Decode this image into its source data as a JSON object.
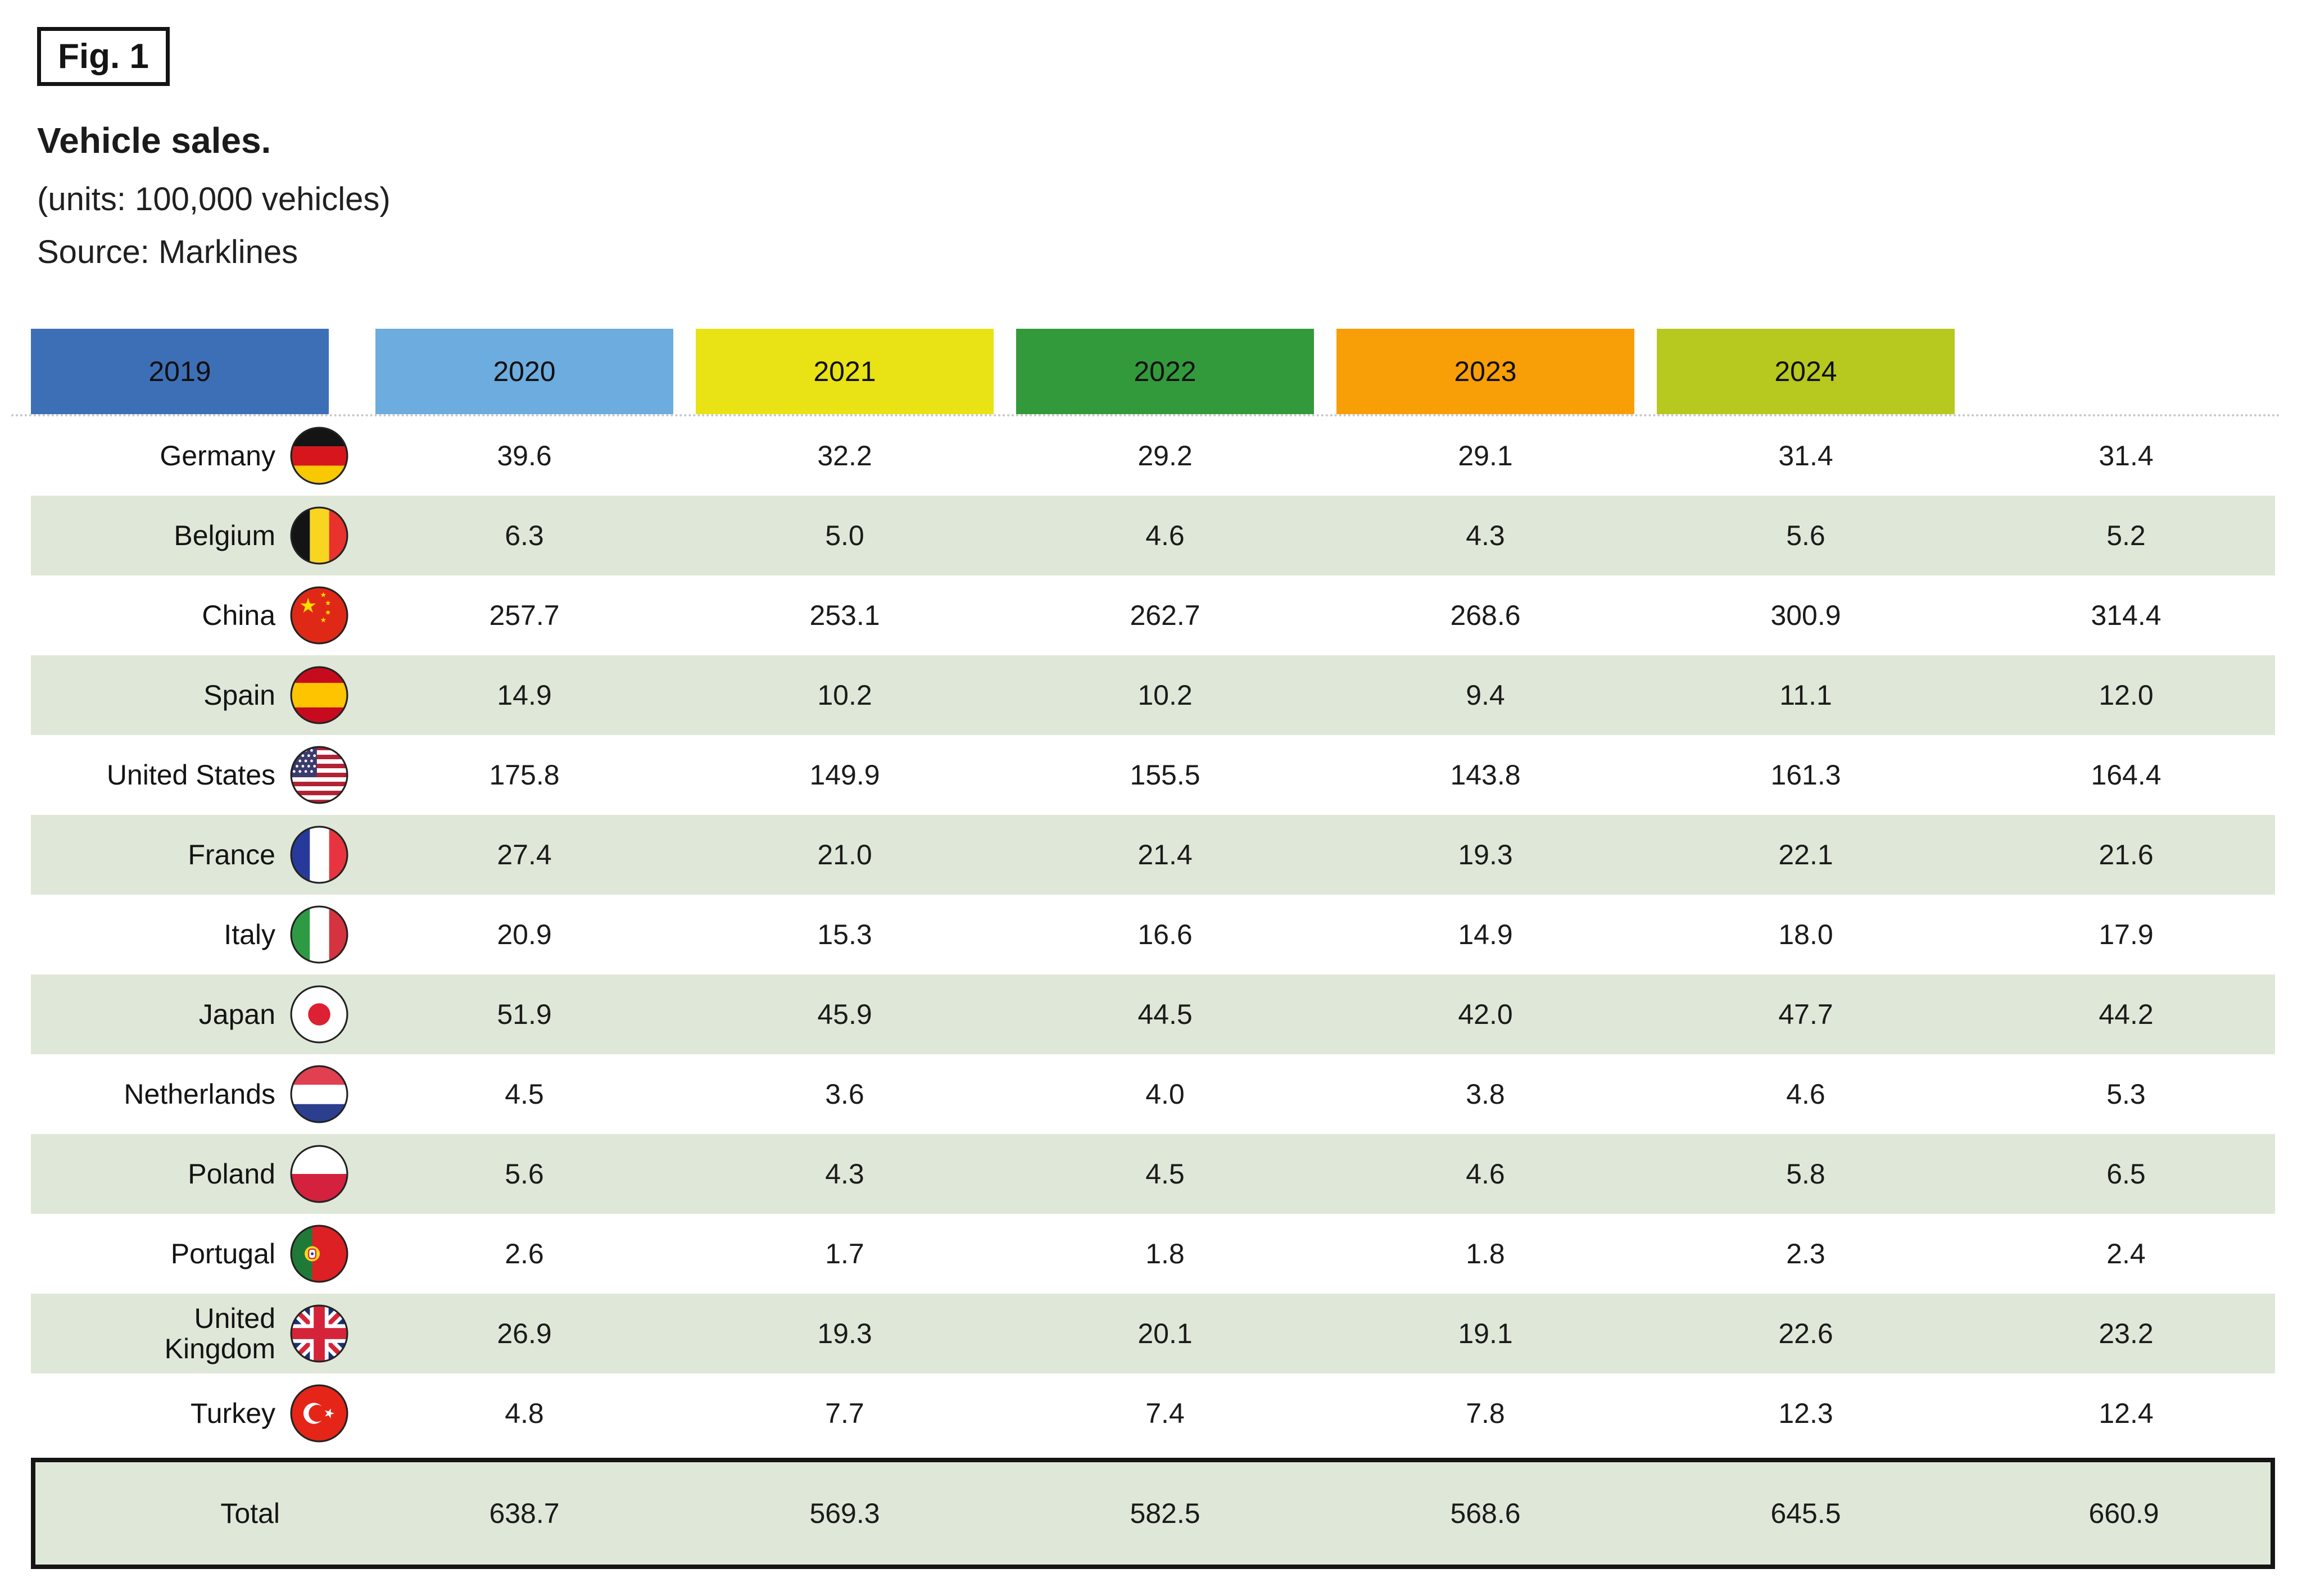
{
  "figure": {
    "tag": "Fig. 1",
    "title": "Vehicle sales.",
    "unit_note": "(units: 100,000 vehicles)",
    "source": "Source: Marklines"
  },
  "palette": {
    "row_stripe": "#dfe8d8",
    "total_border": "#151515",
    "dash_gray": "#c6c6c6",
    "text": "#1b1b1b"
  },
  "table": {
    "years": [
      {
        "label": "2019",
        "color": "#3d6fb6"
      },
      {
        "label": "2020",
        "color": "#6cacdf"
      },
      {
        "label": "2021",
        "color": "#e9e214"
      },
      {
        "label": "2022",
        "color": "#339a3b"
      },
      {
        "label": "2023",
        "color": "#f89e06"
      },
      {
        "label": "2024",
        "color": "#b7c81e"
      }
    ],
    "rows": [
      {
        "country": "Germany",
        "name_lines": [
          "Germany"
        ],
        "flag": "germany",
        "values": [
          "39.6",
          "32.2",
          "29.2",
          "29.1",
          "31.4",
          "31.4"
        ]
      },
      {
        "country": "Belgium",
        "name_lines": [
          "Belgium"
        ],
        "flag": "belgium",
        "values": [
          "6.3",
          "5.0",
          "4.6",
          "4.3",
          "5.6",
          "5.2"
        ]
      },
      {
        "country": "China",
        "name_lines": [
          "China"
        ],
        "flag": "china",
        "values": [
          "257.7",
          "253.1",
          "262.7",
          "268.6",
          "300.9",
          "314.4"
        ]
      },
      {
        "country": "Spain",
        "name_lines": [
          "Spain"
        ],
        "flag": "spain",
        "values": [
          "14.9",
          "10.2",
          "10.2",
          "9.4",
          "11.1",
          "12.0"
        ]
      },
      {
        "country": "United States",
        "name_lines": [
          "United States"
        ],
        "flag": "united-states",
        "values": [
          "175.8",
          "149.9",
          "155.5",
          "143.8",
          "161.3",
          "164.4"
        ]
      },
      {
        "country": "France",
        "name_lines": [
          "France"
        ],
        "flag": "france",
        "values": [
          "27.4",
          "21.0",
          "21.4",
          "19.3",
          "22.1",
          "21.6"
        ]
      },
      {
        "country": "Italy",
        "name_lines": [
          "Italy"
        ],
        "flag": "italy",
        "values": [
          "20.9",
          "15.3",
          "16.6",
          "14.9",
          "18.0",
          "17.9"
        ]
      },
      {
        "country": "Japan",
        "name_lines": [
          "Japan"
        ],
        "flag": "japan",
        "values": [
          "51.9",
          "45.9",
          "44.5",
          "42.0",
          "47.7",
          "44.2"
        ]
      },
      {
        "country": "Netherlands",
        "name_lines": [
          "Netherlands"
        ],
        "flag": "netherlands",
        "values": [
          "4.5",
          "3.6",
          "4.0",
          "3.8",
          "4.6",
          "5.3"
        ]
      },
      {
        "country": "Poland",
        "name_lines": [
          "Poland"
        ],
        "flag": "poland",
        "values": [
          "5.6",
          "4.3",
          "4.5",
          "4.6",
          "5.8",
          "6.5"
        ]
      },
      {
        "country": "Portugal",
        "name_lines": [
          "Portugal"
        ],
        "flag": "portugal",
        "values": [
          "2.6",
          "1.7",
          "1.8",
          "1.8",
          "2.3",
          "2.4"
        ]
      },
      {
        "country": "United Kingdom",
        "name_lines": [
          "United",
          "Kingdom"
        ],
        "flag": "united-kingdom",
        "values": [
          "26.9",
          "19.3",
          "20.1",
          "19.1",
          "22.6",
          "23.2"
        ]
      },
      {
        "country": "Turkey",
        "name_lines": [
          "Turkey"
        ],
        "flag": "turkey",
        "values": [
          "4.8",
          "7.7",
          "7.4",
          "7.8",
          "12.3",
          "12.4"
        ]
      }
    ],
    "total": {
      "label": "Total",
      "values": [
        "638.7",
        "569.3",
        "582.5",
        "568.6",
        "645.5",
        "660.9"
      ]
    }
  },
  "chart_data": {
    "type": "table",
    "title": "Vehicle sales.",
    "unit": "100,000 vehicles",
    "source": "Marklines",
    "categories": [
      "2019",
      "2020",
      "2021",
      "2022",
      "2023",
      "2024"
    ],
    "series": [
      {
        "name": "Germany",
        "values": [
          39.6,
          32.2,
          29.2,
          29.1,
          31.4,
          31.4
        ]
      },
      {
        "name": "Belgium",
        "values": [
          6.3,
          5.0,
          4.6,
          4.3,
          5.6,
          5.2
        ]
      },
      {
        "name": "China",
        "values": [
          257.7,
          253.1,
          262.7,
          268.6,
          300.9,
          314.4
        ]
      },
      {
        "name": "Spain",
        "values": [
          14.9,
          10.2,
          10.2,
          9.4,
          11.1,
          12.0
        ]
      },
      {
        "name": "United States",
        "values": [
          175.8,
          149.9,
          155.5,
          143.8,
          161.3,
          164.4
        ]
      },
      {
        "name": "France",
        "values": [
          27.4,
          21.0,
          21.4,
          19.3,
          22.1,
          21.6
        ]
      },
      {
        "name": "Italy",
        "values": [
          20.9,
          15.3,
          16.6,
          14.9,
          18.0,
          17.9
        ]
      },
      {
        "name": "Japan",
        "values": [
          51.9,
          45.9,
          44.5,
          42.0,
          47.7,
          44.2
        ]
      },
      {
        "name": "Netherlands",
        "values": [
          4.5,
          3.6,
          4.0,
          3.8,
          4.6,
          5.3
        ]
      },
      {
        "name": "Poland",
        "values": [
          5.6,
          4.3,
          4.5,
          4.6,
          5.8,
          6.5
        ]
      },
      {
        "name": "Portugal",
        "values": [
          2.6,
          1.7,
          1.8,
          1.8,
          2.3,
          2.4
        ]
      },
      {
        "name": "United Kingdom",
        "values": [
          26.9,
          19.3,
          20.1,
          19.1,
          22.6,
          23.2
        ]
      },
      {
        "name": "Turkey",
        "values": [
          4.8,
          7.7,
          7.4,
          7.8,
          12.3,
          12.4
        ]
      },
      {
        "name": "Total",
        "values": [
          638.7,
          569.3,
          582.5,
          568.6,
          645.5,
          660.9
        ]
      }
    ]
  }
}
